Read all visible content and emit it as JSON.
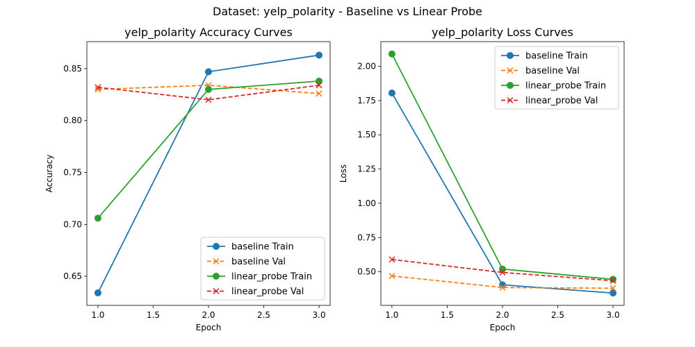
{
  "suptitle": "Dataset: yelp_polarity - Baseline vs Linear Probe",
  "colors": {
    "baseline_train": "#1f77b4",
    "baseline_val": "#ff7f0e",
    "linear_probe_train": "#2ca02c",
    "linear_probe_val": "#d62728"
  },
  "chart_data": [
    {
      "type": "line",
      "title": "yelp_polarity Accuracy Curves",
      "xlabel": "Epoch",
      "ylabel": "Accuracy",
      "x": [
        1.0,
        2.0,
        3.0
      ],
      "xlim": [
        0.9,
        3.1
      ],
      "ylim": [
        0.622,
        0.876
      ],
      "xticks": [
        "1.0",
        "1.5",
        "2.0",
        "2.5",
        "3.0"
      ],
      "xtick_values": [
        1.0,
        1.5,
        2.0,
        2.5,
        3.0
      ],
      "yticks": [
        "0.65",
        "0.70",
        "0.75",
        "0.80",
        "0.85"
      ],
      "ytick_values": [
        0.65,
        0.7,
        0.75,
        0.8,
        0.85
      ],
      "grid": false,
      "legend_position": "lower-right",
      "series": [
        {
          "name": "baseline Train",
          "values": [
            0.634,
            0.847,
            0.863
          ],
          "color": "#1f77b4",
          "marker": "circle",
          "dashed": false
        },
        {
          "name": "baseline Val",
          "values": [
            0.83,
            0.834,
            0.826
          ],
          "color": "#ff7f0e",
          "marker": "x",
          "dashed": true
        },
        {
          "name": "linear_probe Train",
          "values": [
            0.706,
            0.83,
            0.838
          ],
          "color": "#2ca02c",
          "marker": "circle",
          "dashed": false
        },
        {
          "name": "linear_probe Val",
          "values": [
            0.832,
            0.82,
            0.834
          ],
          "color": "#d62728",
          "marker": "x",
          "dashed": true
        }
      ]
    },
    {
      "type": "line",
      "title": "yelp_polarity Loss Curves",
      "xlabel": "Epoch",
      "ylabel": "Loss",
      "x": [
        1.0,
        2.0,
        3.0
      ],
      "xlim": [
        0.9,
        3.1
      ],
      "ylim": [
        0.255,
        2.18
      ],
      "xticks": [
        "1.0",
        "1.5",
        "2.0",
        "2.5",
        "3.0"
      ],
      "xtick_values": [
        1.0,
        1.5,
        2.0,
        2.5,
        3.0
      ],
      "yticks": [
        "0.50",
        "0.75",
        "1.00",
        "1.25",
        "1.50",
        "1.75",
        "2.00"
      ],
      "ytick_values": [
        0.5,
        0.75,
        1.0,
        1.25,
        1.5,
        1.75,
        2.0
      ],
      "grid": false,
      "legend_position": "upper-right",
      "series": [
        {
          "name": "baseline Train",
          "values": [
            1.805,
            0.405,
            0.345
          ],
          "color": "#1f77b4",
          "marker": "circle",
          "dashed": false
        },
        {
          "name": "baseline Val",
          "values": [
            0.47,
            0.385,
            0.38
          ],
          "color": "#ff7f0e",
          "marker": "x",
          "dashed": true
        },
        {
          "name": "linear_probe Train",
          "values": [
            2.09,
            0.52,
            0.445
          ],
          "color": "#2ca02c",
          "marker": "circle",
          "dashed": false
        },
        {
          "name": "linear_probe Val",
          "values": [
            0.59,
            0.495,
            0.435
          ],
          "color": "#d62728",
          "marker": "x",
          "dashed": true
        }
      ]
    }
  ]
}
